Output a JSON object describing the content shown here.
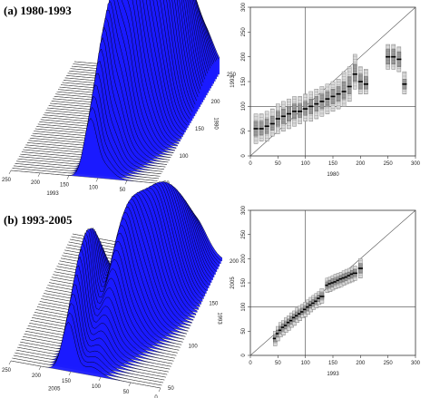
{
  "panels": [
    {
      "label": "(a) 1980-1993",
      "surface": {
        "x_ticks": [
          "250",
          "200",
          "150",
          "100",
          "50",
          "0"
        ],
        "x_label": "1993",
        "depth_ticks": [
          "250",
          "200",
          "150",
          "100",
          "50"
        ],
        "depth_label": "1980",
        "peak_positions": [
          118,
          95,
          70,
          52
        ],
        "peak_heights": [
          0.9,
          1.0,
          0.85,
          0.55
        ]
      },
      "boxplot": {
        "type": "box",
        "xlabel": "1980",
        "ylabel": "1993",
        "xlim": [
          0,
          300
        ],
        "ylim": [
          0,
          300
        ],
        "x_ticks": [
          "0",
          "50",
          "100",
          "150",
          "200",
          "250",
          "300"
        ],
        "y_ticks": [
          "0",
          "50",
          "100",
          "150",
          "200",
          "250",
          "300"
        ],
        "ref_vline": 100,
        "ref_hline": 100,
        "diagonal": true,
        "x": [
          10,
          20,
          30,
          40,
          50,
          60,
          70,
          80,
          90,
          100,
          110,
          120,
          130,
          140,
          150,
          160,
          170,
          180,
          190,
          200,
          210,
          250,
          260,
          270,
          280
        ],
        "median": [
          55,
          55,
          60,
          65,
          75,
          80,
          85,
          90,
          90,
          95,
          100,
          105,
          110,
          115,
          120,
          125,
          130,
          140,
          165,
          150,
          145,
          200,
          200,
          195,
          145
        ],
        "q1": [
          40,
          42,
          45,
          52,
          60,
          65,
          70,
          75,
          78,
          82,
          85,
          90,
          95,
          100,
          105,
          110,
          115,
          125,
          150,
          135,
          135,
          185,
          185,
          180,
          135
        ],
        "q3": [
          70,
          70,
          75,
          80,
          90,
          95,
          100,
          105,
          105,
          110,
          115,
          120,
          125,
          130,
          135,
          140,
          150,
          160,
          185,
          165,
          160,
          215,
          215,
          210,
          155
        ],
        "wmin": [
          25,
          30,
          30,
          40,
          45,
          50,
          55,
          60,
          65,
          70,
          70,
          75,
          80,
          85,
          90,
          95,
          100,
          110,
          135,
          125,
          125,
          175,
          175,
          170,
          125
        ],
        "wmax": [
          85,
          85,
          90,
          95,
          105,
          110,
          115,
          120,
          120,
          125,
          130,
          135,
          140,
          145,
          150,
          155,
          170,
          180,
          205,
          180,
          175,
          225,
          225,
          220,
          170
        ]
      }
    },
    {
      "label": "(b) 1993-2005",
      "surface": {
        "x_ticks": [
          "250",
          "200",
          "150",
          "100",
          "50",
          "0"
        ],
        "x_label": "2005",
        "depth_ticks": [
          "200",
          "150",
          "100",
          "50"
        ],
        "depth_label": "1993",
        "peak_positions": [
          160,
          120,
          95,
          70
        ],
        "peak_heights": [
          1.0,
          0.8,
          0.7,
          0.6
        ]
      },
      "boxplot": {
        "type": "box",
        "xlabel": "1993",
        "ylabel": "2005",
        "xlim": [
          0,
          300
        ],
        "ylim": [
          0,
          300
        ],
        "x_ticks": [
          "0",
          "50",
          "100",
          "150",
          "200",
          "250",
          "300"
        ],
        "y_ticks": [
          "0",
          "50",
          "100",
          "150",
          "200",
          "250",
          "300"
        ],
        "ref_vline": 100,
        "ref_hline": 100,
        "diagonal": true,
        "x": [
          45,
          50,
          55,
          60,
          65,
          70,
          75,
          80,
          85,
          90,
          95,
          100,
          105,
          110,
          115,
          120,
          125,
          130,
          140,
          145,
          150,
          155,
          160,
          165,
          170,
          175,
          180,
          185,
          190,
          200
        ],
        "median": [
          35,
          45,
          52,
          58,
          62,
          68,
          72,
          78,
          82,
          86,
          90,
          95,
          100,
          104,
          108,
          112,
          118,
          122,
          145,
          148,
          150,
          152,
          155,
          158,
          160,
          162,
          165,
          168,
          170,
          180
        ],
        "q1": [
          28,
          38,
          45,
          50,
          55,
          60,
          65,
          70,
          75,
          80,
          85,
          88,
          92,
          98,
          102,
          106,
          112,
          116,
          138,
          140,
          142,
          146,
          148,
          150,
          152,
          155,
          158,
          160,
          163,
          170
        ],
        "q3": [
          42,
          52,
          60,
          65,
          70,
          75,
          80,
          85,
          90,
          94,
          98,
          102,
          108,
          112,
          116,
          120,
          125,
          130,
          152,
          155,
          158,
          160,
          162,
          165,
          168,
          170,
          172,
          175,
          178,
          190
        ],
        "wmin": [
          20,
          30,
          38,
          42,
          48,
          52,
          58,
          62,
          68,
          72,
          78,
          80,
          85,
          90,
          95,
          98,
          105,
          108,
          130,
          132,
          135,
          138,
          140,
          142,
          145,
          148,
          150,
          152,
          155,
          160
        ],
        "wmax": [
          50,
          60,
          68,
          72,
          78,
          82,
          88,
          92,
          98,
          102,
          106,
          110,
          115,
          120,
          124,
          128,
          132,
          138,
          160,
          162,
          165,
          168,
          170,
          172,
          175,
          178,
          180,
          182,
          185,
          200
        ]
      }
    }
  ]
}
